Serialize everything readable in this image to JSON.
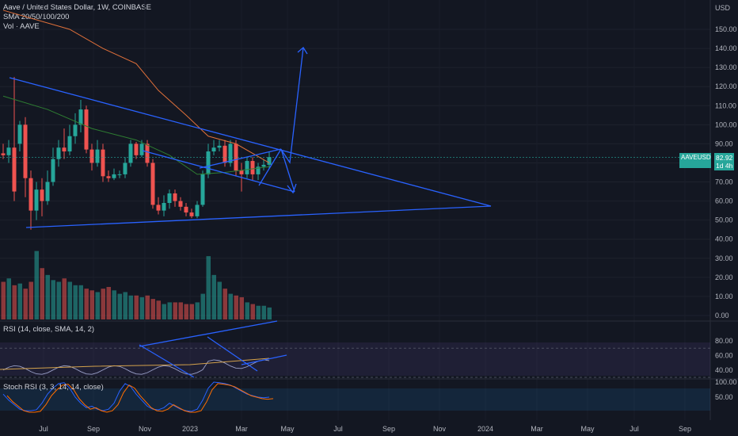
{
  "header": {
    "title": "Aave / United States Dollar, 1W, COINBASE",
    "sma": "SMA 20/50/100/200",
    "vol": "Vol · AAVE"
  },
  "currency": "USD",
  "price_tag": {
    "ticker": "AAVEUSD",
    "price": "82.92",
    "countdown": "1d 4h",
    "color": "#26a69a"
  },
  "panes": {
    "rsi_label": "RSI (14, close, SMA, 14, 2)",
    "stoch_label": "Stoch RSI (3, 3, 14, 14, close)"
  },
  "colors": {
    "up": "#26a69a",
    "down": "#ef5350",
    "trendline": "#2962ff",
    "background": "#131722"
  },
  "chart_data": [
    {
      "type": "candlestick",
      "title": "Aave / United States Dollar, 1W, COINBASE",
      "y_axis_ticks": [
        "150.00",
        "140.00",
        "130.00",
        "120.00",
        "110.00",
        "100.00",
        "90.00",
        "80.00",
        "70.00",
        "60.00",
        "50.00",
        "40.00",
        "30.00",
        "20.00",
        "10.00",
        "0.00"
      ],
      "ylim": [
        0,
        155
      ],
      "x_axis_ticks": [
        "Jul",
        "Sep",
        "Nov",
        "2023",
        "Mar",
        "May",
        "Jul",
        "Sep",
        "Nov",
        "2024",
        "Mar",
        "May",
        "Jul",
        "Sep"
      ],
      "candles": [
        {
          "o": 85,
          "c": 84,
          "h": 90,
          "l": 82
        },
        {
          "o": 84,
          "c": 88,
          "h": 92,
          "l": 80
        },
        {
          "o": 88,
          "c": 65,
          "h": 125,
          "l": 60
        },
        {
          "o": 90,
          "c": 100,
          "h": 102,
          "l": 86
        },
        {
          "o": 100,
          "c": 72,
          "h": 104,
          "l": 62
        },
        {
          "o": 72,
          "c": 55,
          "h": 76,
          "l": 45
        },
        {
          "o": 55,
          "c": 66,
          "h": 70,
          "l": 50
        },
        {
          "o": 66,
          "c": 60,
          "h": 72,
          "l": 52
        },
        {
          "o": 60,
          "c": 70,
          "h": 76,
          "l": 58
        },
        {
          "o": 70,
          "c": 82,
          "h": 88,
          "l": 68
        },
        {
          "o": 82,
          "c": 88,
          "h": 92,
          "l": 78
        },
        {
          "o": 88,
          "c": 86,
          "h": 98,
          "l": 82
        },
        {
          "o": 86,
          "c": 94,
          "h": 100,
          "l": 84
        },
        {
          "o": 94,
          "c": 100,
          "h": 106,
          "l": 90
        },
        {
          "o": 100,
          "c": 108,
          "h": 113,
          "l": 96
        },
        {
          "o": 108,
          "c": 87,
          "h": 110,
          "l": 85
        },
        {
          "o": 87,
          "c": 80,
          "h": 90,
          "l": 76
        },
        {
          "o": 80,
          "c": 87,
          "h": 92,
          "l": 78
        },
        {
          "o": 87,
          "c": 73,
          "h": 90,
          "l": 70
        },
        {
          "o": 73,
          "c": 72,
          "h": 76,
          "l": 70
        },
        {
          "o": 72,
          "c": 74,
          "h": 77,
          "l": 71
        },
        {
          "o": 74,
          "c": 74,
          "h": 76,
          "l": 72
        },
        {
          "o": 74,
          "c": 80,
          "h": 83,
          "l": 72
        },
        {
          "o": 80,
          "c": 90,
          "h": 92,
          "l": 78
        },
        {
          "o": 90,
          "c": 84,
          "h": 91,
          "l": 82
        },
        {
          "o": 84,
          "c": 90,
          "h": 92,
          "l": 83
        },
        {
          "o": 90,
          "c": 80,
          "h": 92,
          "l": 78
        },
        {
          "o": 80,
          "c": 58,
          "h": 82,
          "l": 56
        },
        {
          "o": 58,
          "c": 55,
          "h": 62,
          "l": 53
        },
        {
          "o": 55,
          "c": 59,
          "h": 63,
          "l": 52
        },
        {
          "o": 59,
          "c": 64,
          "h": 66,
          "l": 56
        },
        {
          "o": 64,
          "c": 60,
          "h": 66,
          "l": 57
        },
        {
          "o": 60,
          "c": 57,
          "h": 62,
          "l": 55
        },
        {
          "o": 57,
          "c": 54,
          "h": 59,
          "l": 52
        },
        {
          "o": 54,
          "c": 52,
          "h": 56,
          "l": 51
        },
        {
          "o": 52,
          "c": 58,
          "h": 60,
          "l": 51
        },
        {
          "o": 58,
          "c": 74,
          "h": 76,
          "l": 57
        },
        {
          "o": 74,
          "c": 86,
          "h": 90,
          "l": 72
        },
        {
          "o": 86,
          "c": 88,
          "h": 92,
          "l": 84
        },
        {
          "o": 88,
          "c": 89,
          "h": 92,
          "l": 86
        },
        {
          "o": 89,
          "c": 80,
          "h": 92,
          "l": 78
        },
        {
          "o": 80,
          "c": 90,
          "h": 92,
          "l": 78
        },
        {
          "o": 90,
          "c": 76,
          "h": 92,
          "l": 73
        },
        {
          "o": 76,
          "c": 74,
          "h": 80,
          "l": 65
        },
        {
          "o": 74,
          "c": 81,
          "h": 83,
          "l": 72
        },
        {
          "o": 81,
          "c": 74,
          "h": 83,
          "l": 71
        },
        {
          "o": 74,
          "c": 78,
          "h": 80,
          "l": 71
        },
        {
          "o": 78,
          "c": 79,
          "h": 82,
          "l": 76
        },
        {
          "o": 79,
          "c": 83,
          "h": 86,
          "l": 77
        }
      ],
      "volume": [
        22,
        24,
        20,
        21,
        18,
        22,
        40,
        30,
        26,
        23,
        22,
        24,
        22,
        20,
        20,
        18,
        17,
        16,
        18,
        19,
        17,
        15,
        16,
        14,
        14,
        13,
        14,
        12,
        11,
        9,
        10,
        10,
        10,
        9,
        9,
        10,
        15,
        37,
        26,
        22,
        18,
        15,
        14,
        13,
        10,
        9,
        8,
        8,
        7
      ],
      "sma_line": [
        {
          "x": 0,
          "y": 160
        },
        {
          "x": 12,
          "y": 150
        },
        {
          "x": 18,
          "y": 140
        },
        {
          "x": 24,
          "y": 132
        },
        {
          "x": 28,
          "y": 118
        },
        {
          "x": 33,
          "y": 105
        },
        {
          "x": 37,
          "y": 94
        },
        {
          "x": 42,
          "y": 90
        },
        {
          "x": 48,
          "y": 80
        }
      ]
    }
  ]
}
